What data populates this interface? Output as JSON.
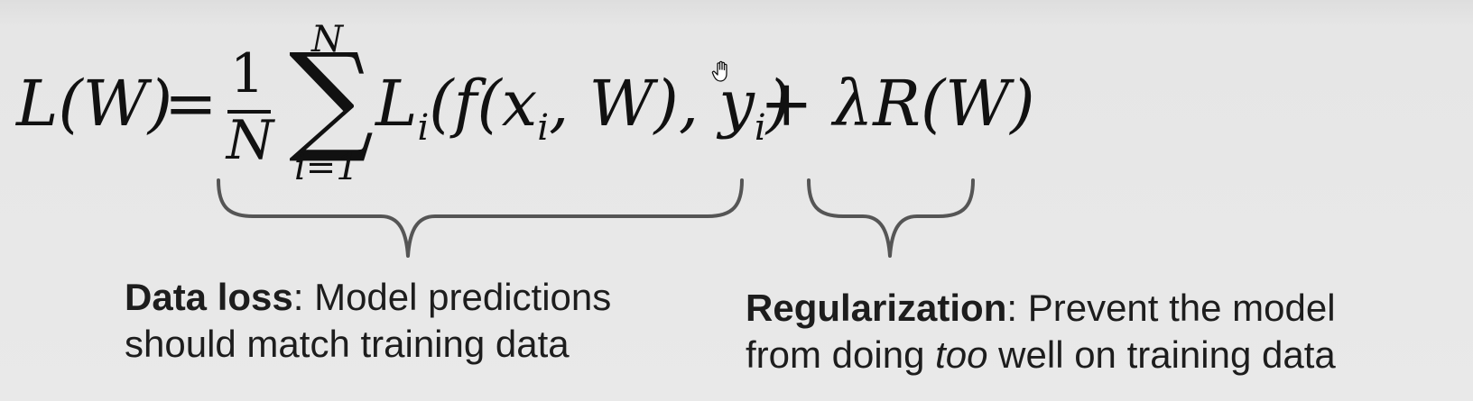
{
  "equation": {
    "lhs": "L(W)",
    "equals": "=",
    "frac_numerator": "1",
    "frac_denominator": "N",
    "sum_symbol": "∑",
    "sum_upper": "N",
    "sum_lower": "i=1",
    "body_Li": "L",
    "body_Li_sub": "i",
    "body_open": "(f(x",
    "body_x_sub": "i",
    "body_mid": ", W), y",
    "body_y_sub": "i",
    "body_close": ")",
    "plus_reg": "+ λR(W)"
  },
  "captions": {
    "left_bold": "Data loss",
    "left_rest_line1": ": Model predictions",
    "left_line2": "should match training data",
    "right_bold": "Regularization",
    "right_rest_line1": ": Prevent the model",
    "right_line2_a": "from doing ",
    "right_line2_em": "too",
    "right_line2_b": " well on training data"
  },
  "icons": {
    "cursor": "hand-cursor-icon"
  },
  "colors": {
    "background": "#e9e9e9",
    "text": "#111111",
    "brace": "#555555"
  }
}
